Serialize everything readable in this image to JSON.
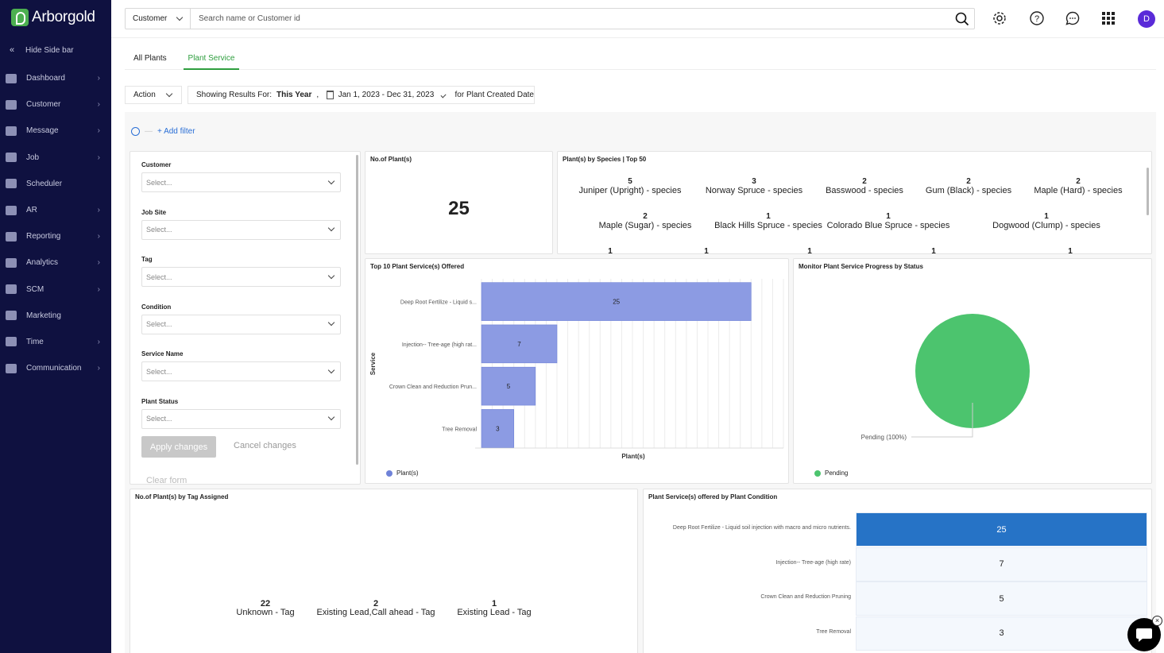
{
  "app": {
    "name": "Arborgold",
    "avatar_initial": "D"
  },
  "sidebar": {
    "hide_label": "Hide Side bar",
    "items": [
      {
        "label": "Dashboard",
        "icon": "dashboard-icon",
        "has_children": true
      },
      {
        "label": "Customer",
        "icon": "user-icon",
        "has_children": true
      },
      {
        "label": "Message",
        "icon": "message-icon",
        "has_children": true
      },
      {
        "label": "Job",
        "icon": "job-icon",
        "has_children": true
      },
      {
        "label": "Scheduler",
        "icon": "calendar-icon",
        "has_children": false
      },
      {
        "label": "AR",
        "icon": "ar-icon",
        "has_children": true
      },
      {
        "label": "Reporting",
        "icon": "reporting-icon",
        "has_children": true
      },
      {
        "label": "Analytics",
        "icon": "analytics-icon",
        "has_children": true
      },
      {
        "label": "SCM",
        "icon": "scm-icon",
        "has_children": true
      },
      {
        "label": "Marketing",
        "icon": "megaphone-icon",
        "has_children": false
      },
      {
        "label": "Time",
        "icon": "clock-icon",
        "has_children": true
      },
      {
        "label": "Communication",
        "icon": "send-icon",
        "has_children": true
      }
    ]
  },
  "search": {
    "type": "Customer",
    "placeholder": "Search name or Customer id"
  },
  "tabs": [
    {
      "label": "All Plants",
      "active": false
    },
    {
      "label": "Plant Service",
      "active": true
    }
  ],
  "toolbar": {
    "action_label": "Action",
    "showing_label": "Showing Results For:",
    "period": "This Year",
    "separator": ",",
    "date_range": "Jan 1, 2023 - Dec 31, 2023",
    "date_field": "for Plant Created Date"
  },
  "filters": {
    "add_filter": "+ Add filter",
    "fields": [
      {
        "label": "Customer",
        "placeholder": "Select..."
      },
      {
        "label": "Job Site",
        "placeholder": "Select..."
      },
      {
        "label": "Tag",
        "placeholder": "Select..."
      },
      {
        "label": "Condition",
        "placeholder": "Select..."
      },
      {
        "label": "Service Name",
        "placeholder": "Select..."
      },
      {
        "label": "Plant Status",
        "placeholder": "Select..."
      }
    ],
    "apply": "Apply changes",
    "cancel": "Cancel changes",
    "clear": "Clear form"
  },
  "widgets": {
    "plant_count": {
      "title": "No.of Plant(s)",
      "value": "25"
    },
    "species": {
      "title": "Plant(s) by Species | Top 50",
      "items": [
        {
          "value": "5",
          "label": "Juniper (Upright) - species"
        },
        {
          "value": "3",
          "label": "Norway Spruce - species"
        },
        {
          "value": "2",
          "label": "Basswood - species"
        },
        {
          "value": "2",
          "label": "Gum (Black) - species"
        },
        {
          "value": "2",
          "label": "Maple (Hard) - species"
        },
        {
          "value": "2",
          "label": "Maple (Sugar) - species"
        },
        {
          "value": "1",
          "label": "Black Hills Spruce - species"
        },
        {
          "value": "1",
          "label": "Colorado Blue Spruce - species"
        },
        {
          "value": "1",
          "label": "Dogwood (Clump) - species"
        }
      ],
      "partial_row": [
        "1",
        "1",
        "1",
        "1",
        "1"
      ]
    },
    "top_services": {
      "title": "Top 10 Plant Service(s) Offered"
    },
    "status_progress": {
      "title": "Monitor Plant Service Progress by Status"
    },
    "tags": {
      "title": "No.of Plant(s) by Tag Assigned",
      "items": [
        {
          "value": "22",
          "label": "Unknown - Tag"
        },
        {
          "value": "2",
          "label": "Existing Lead,Call ahead - Tag"
        },
        {
          "value": "1",
          "label": "Existing Lead - Tag"
        }
      ]
    },
    "by_condition": {
      "title": "Plant Service(s) offered by Plant Condition",
      "rows": [
        {
          "label": "Deep Root Fertilize - Liquid soil injection with macro and micro nutrients.",
          "value": "25",
          "highlight": true
        },
        {
          "label": "Injection-- Tree-age (high rate)",
          "value": "7",
          "highlight": false
        },
        {
          "label": "Crown Clean and Reduction Pruning",
          "value": "5",
          "highlight": false
        },
        {
          "label": "Tree Removal",
          "value": "3",
          "highlight": false
        }
      ]
    }
  },
  "chart_data": [
    {
      "type": "bar",
      "orientation": "horizontal",
      "title": "Top 10 Plant Service(s) Offered",
      "categories": [
        "Deep Root Fertilize - Liquid s...",
        "Injection-- Tree-age (high rat...",
        "Crown Clean and Reduction Prun...",
        "Tree Removal"
      ],
      "series": [
        {
          "name": "Plant(s)",
          "values": [
            25,
            7,
            5,
            3
          ],
          "color": "#8c9be3"
        }
      ],
      "xlabel": "Plant(s)",
      "ylabel": "Service",
      "xlim": [
        0,
        28
      ],
      "grid": true,
      "legend": "bottom-left"
    },
    {
      "type": "pie",
      "title": "Monitor Plant Service Progress by Status",
      "slices": [
        {
          "name": "Pending",
          "value": 100,
          "label": "Pending (100%)",
          "color": "#4cc46e"
        }
      ],
      "legend": "bottom-left"
    }
  ]
}
